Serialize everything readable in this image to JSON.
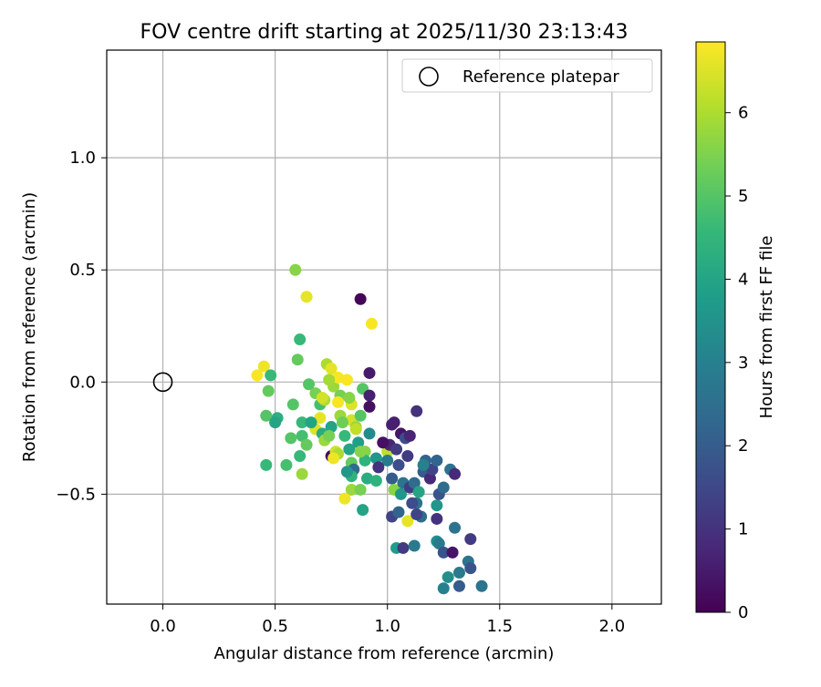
{
  "chart_data": {
    "type": "scatter",
    "title": "FOV centre drift starting at 2025/11/30 23:13:43",
    "xlabel": "Angular distance from reference (arcmin)",
    "ylabel": "Rotation from reference (arcmin)",
    "xlim": [
      -0.25,
      2.22
    ],
    "ylim": [
      -0.99,
      1.48
    ],
    "xticks": [
      0.0,
      0.5,
      1.0,
      1.5,
      2.0
    ],
    "xtick_labels": [
      "0.0",
      "0.5",
      "1.0",
      "1.5",
      "2.0"
    ],
    "yticks": [
      -0.5,
      0.0,
      0.5,
      1.0
    ],
    "ytick_labels": [
      "−0.5",
      "0.0",
      "0.5",
      "1.0"
    ],
    "grid": true,
    "legend": {
      "position": "top-right",
      "label": "Reference platepar"
    },
    "reference_point": {
      "x": 0.0,
      "y": 0.0
    },
    "colorbar": {
      "label": "Hours from first FF file",
      "range": [
        0,
        6.85
      ],
      "ticks": [
        0,
        1,
        2,
        3,
        4,
        5,
        6
      ],
      "tick_labels": [
        "0",
        "1",
        "2",
        "3",
        "4",
        "5",
        "6"
      ],
      "colormap": "viridis",
      "colors": [
        "#440154",
        "#482878",
        "#3e4989",
        "#31688e",
        "#26828e",
        "#1f9e89",
        "#35b779",
        "#6ece58",
        "#b5de2b",
        "#fde725"
      ]
    },
    "series": [
      {
        "name": "FOV centre drift",
        "points": [
          {
            "x": 0.88,
            "y": 0.37,
            "t": 0.1
          },
          {
            "x": 0.93,
            "y": 0.26,
            "t": 6.8
          },
          {
            "x": 0.59,
            "y": 0.5,
            "t": 5.6
          },
          {
            "x": 0.64,
            "y": 0.38,
            "t": 6.6
          },
          {
            "x": 0.42,
            "y": 0.03,
            "t": 6.8
          },
          {
            "x": 0.45,
            "y": 0.07,
            "t": 6.7
          },
          {
            "x": 0.48,
            "y": 0.03,
            "t": 4.6
          },
          {
            "x": 0.47,
            "y": -0.04,
            "t": 5.2
          },
          {
            "x": 0.61,
            "y": 0.19,
            "t": 4.6
          },
          {
            "x": 0.6,
            "y": 0.1,
            "t": 5.2
          },
          {
            "x": 0.46,
            "y": -0.15,
            "t": 5.0
          },
          {
            "x": 0.51,
            "y": -0.16,
            "t": 4.3
          },
          {
            "x": 0.5,
            "y": -0.18,
            "t": 4.0
          },
          {
            "x": 0.46,
            "y": -0.37,
            "t": 4.6
          },
          {
            "x": 0.55,
            "y": -0.37,
            "t": 4.8
          },
          {
            "x": 0.58,
            "y": -0.1,
            "t": 5.0
          },
          {
            "x": 0.62,
            "y": -0.41,
            "t": 5.8
          },
          {
            "x": 0.62,
            "y": -0.24,
            "t": 4.8
          },
          {
            "x": 0.61,
            "y": -0.33,
            "t": 4.6
          },
          {
            "x": 0.57,
            "y": -0.25,
            "t": 5.0
          },
          {
            "x": 0.62,
            "y": -0.18,
            "t": 4.6
          },
          {
            "x": 0.65,
            "y": -0.01,
            "t": 5.0
          },
          {
            "x": 0.68,
            "y": -0.05,
            "t": 5.4
          },
          {
            "x": 0.7,
            "y": -0.1,
            "t": 4.8
          },
          {
            "x": 0.72,
            "y": -0.08,
            "t": 6.0
          },
          {
            "x": 0.73,
            "y": 0.08,
            "t": 6.0
          },
          {
            "x": 0.75,
            "y": 0.06,
            "t": 6.6
          },
          {
            "x": 0.76,
            "y": -0.02,
            "t": 5.8
          },
          {
            "x": 0.78,
            "y": 0.02,
            "t": 6.8
          },
          {
            "x": 0.79,
            "y": -0.06,
            "t": 5.4
          },
          {
            "x": 0.82,
            "y": 0.01,
            "t": 6.8
          },
          {
            "x": 0.84,
            "y": -0.1,
            "t": 6.5
          },
          {
            "x": 0.83,
            "y": -0.07,
            "t": 5.6
          },
          {
            "x": 0.89,
            "y": -0.03,
            "t": 5.0
          },
          {
            "x": 0.92,
            "y": 0.04,
            "t": 0.5
          },
          {
            "x": 0.92,
            "y": -0.06,
            "t": 0.6
          },
          {
            "x": 0.92,
            "y": -0.11,
            "t": 0.3
          },
          {
            "x": 0.68,
            "y": -0.21,
            "t": 6.5
          },
          {
            "x": 0.7,
            "y": -0.16,
            "t": 6.6
          },
          {
            "x": 0.71,
            "y": -0.23,
            "t": 4.2
          },
          {
            "x": 0.72,
            "y": -0.26,
            "t": 5.8
          },
          {
            "x": 0.75,
            "y": -0.2,
            "t": 4.0
          },
          {
            "x": 0.75,
            "y": -0.33,
            "t": 0.2
          },
          {
            "x": 0.77,
            "y": -0.31,
            "t": 6.4
          },
          {
            "x": 0.78,
            "y": -0.09,
            "t": 6.8
          },
          {
            "x": 0.79,
            "y": -0.15,
            "t": 5.8
          },
          {
            "x": 0.81,
            "y": -0.24,
            "t": 4.6
          },
          {
            "x": 0.83,
            "y": -0.3,
            "t": 4.0
          },
          {
            "x": 0.84,
            "y": -0.17,
            "t": 6.4
          },
          {
            "x": 0.86,
            "y": -0.2,
            "t": 5.8
          },
          {
            "x": 0.87,
            "y": -0.27,
            "t": 3.8
          },
          {
            "x": 0.88,
            "y": -0.15,
            "t": 5.0
          },
          {
            "x": 0.9,
            "y": -0.31,
            "t": 5.6
          },
          {
            "x": 0.92,
            "y": -0.23,
            "t": 3.3
          },
          {
            "x": 0.84,
            "y": -0.36,
            "t": 5.2
          },
          {
            "x": 0.85,
            "y": -0.39,
            "t": 2.4
          },
          {
            "x": 0.84,
            "y": -0.42,
            "t": 4.4
          },
          {
            "x": 0.84,
            "y": -0.48,
            "t": 5.8
          },
          {
            "x": 0.88,
            "y": -0.48,
            "t": 5.4
          },
          {
            "x": 0.81,
            "y": -0.52,
            "t": 6.7
          },
          {
            "x": 0.89,
            "y": -0.57,
            "t": 4.0
          },
          {
            "x": 0.91,
            "y": -0.43,
            "t": 4.2
          },
          {
            "x": 0.95,
            "y": -0.44,
            "t": 4.4
          },
          {
            "x": 0.95,
            "y": -0.34,
            "t": 3.6
          },
          {
            "x": 1.0,
            "y": -0.31,
            "t": 6.2
          },
          {
            "x": 1.01,
            "y": -0.28,
            "t": 0.7
          },
          {
            "x": 1.02,
            "y": -0.19,
            "t": 0.6
          },
          {
            "x": 1.03,
            "y": -0.18,
            "t": 0.6
          },
          {
            "x": 1.04,
            "y": -0.3,
            "t": 1.2
          },
          {
            "x": 1.05,
            "y": -0.37,
            "t": 1.6
          },
          {
            "x": 1.06,
            "y": -0.23,
            "t": 0.4
          },
          {
            "x": 1.08,
            "y": -0.25,
            "t": 1.6
          },
          {
            "x": 1.09,
            "y": -0.33,
            "t": 1.2
          },
          {
            "x": 1.1,
            "y": -0.24,
            "t": 0.7
          },
          {
            "x": 1.13,
            "y": -0.13,
            "t": 1.0
          },
          {
            "x": 1.02,
            "y": -0.43,
            "t": 2.0
          },
          {
            "x": 1.03,
            "y": -0.48,
            "t": 5.6
          },
          {
            "x": 1.06,
            "y": -0.5,
            "t": 3.6
          },
          {
            "x": 1.02,
            "y": -0.6,
            "t": 1.4
          },
          {
            "x": 1.05,
            "y": -0.58,
            "t": 2.2
          },
          {
            "x": 1.07,
            "y": -0.45,
            "t": 2.6
          },
          {
            "x": 1.09,
            "y": -0.62,
            "t": 6.6
          },
          {
            "x": 1.1,
            "y": -0.47,
            "t": 1.2
          },
          {
            "x": 1.12,
            "y": -0.45,
            "t": 2.4
          },
          {
            "x": 1.13,
            "y": -0.54,
            "t": 2.6
          },
          {
            "x": 1.14,
            "y": -0.49,
            "t": 4.0
          },
          {
            "x": 1.15,
            "y": -0.6,
            "t": 2.4
          },
          {
            "x": 1.16,
            "y": -0.4,
            "t": 2.0
          },
          {
            "x": 1.17,
            "y": -0.35,
            "t": 2.2
          },
          {
            "x": 1.19,
            "y": -0.43,
            "t": 0.8
          },
          {
            "x": 1.2,
            "y": -0.39,
            "t": 1.4
          },
          {
            "x": 1.22,
            "y": -0.35,
            "t": 2.2
          },
          {
            "x": 1.22,
            "y": -0.55,
            "t": 3.6
          },
          {
            "x": 1.23,
            "y": -0.5,
            "t": 1.8
          },
          {
            "x": 1.25,
            "y": -0.47,
            "t": 2.4
          },
          {
            "x": 1.28,
            "y": -0.39,
            "t": 2.6
          },
          {
            "x": 1.3,
            "y": -0.41,
            "t": 0.8
          },
          {
            "x": 1.22,
            "y": -0.61,
            "t": 1.0
          },
          {
            "x": 1.22,
            "y": -0.71,
            "t": 3.4
          },
          {
            "x": 1.23,
            "y": -0.72,
            "t": 2.8
          },
          {
            "x": 1.25,
            "y": -0.76,
            "t": 1.8
          },
          {
            "x": 1.29,
            "y": -0.76,
            "t": 0.4
          },
          {
            "x": 1.3,
            "y": -0.65,
            "t": 2.6
          },
          {
            "x": 1.32,
            "y": -0.85,
            "t": 2.8
          },
          {
            "x": 1.36,
            "y": -0.8,
            "t": 2.6
          },
          {
            "x": 1.37,
            "y": -0.83,
            "t": 1.8
          },
          {
            "x": 1.37,
            "y": -0.7,
            "t": 1.2
          },
          {
            "x": 1.27,
            "y": -0.87,
            "t": 3.4
          },
          {
            "x": 1.25,
            "y": -0.92,
            "t": 3.0
          },
          {
            "x": 1.32,
            "y": -0.91,
            "t": 2.0
          },
          {
            "x": 1.42,
            "y": -0.91,
            "t": 2.6
          },
          {
            "x": 1.04,
            "y": -0.74,
            "t": 3.8
          },
          {
            "x": 1.07,
            "y": -0.74,
            "t": 1.2
          },
          {
            "x": 1.12,
            "y": -0.73,
            "t": 2.8
          },
          {
            "x": 1.13,
            "y": -0.59,
            "t": 1.4
          },
          {
            "x": 0.98,
            "y": -0.27,
            "t": 0.3
          },
          {
            "x": 0.9,
            "y": -0.35,
            "t": 4.4
          },
          {
            "x": 0.88,
            "y": -0.31,
            "t": 5.6
          },
          {
            "x": 0.78,
            "y": -0.32,
            "t": 6.0
          },
          {
            "x": 0.76,
            "y": -0.34,
            "t": 6.7
          },
          {
            "x": 0.74,
            "y": -0.24,
            "t": 5.4
          },
          {
            "x": 0.66,
            "y": -0.18,
            "t": 4.0
          },
          {
            "x": 0.64,
            "y": -0.28,
            "t": 5.2
          },
          {
            "x": 0.71,
            "y": -0.07,
            "t": 6.4
          },
          {
            "x": 0.74,
            "y": 0.01,
            "t": 5.9
          },
          {
            "x": 0.86,
            "y": -0.21,
            "t": 6.2
          },
          {
            "x": 0.8,
            "y": -0.18,
            "t": 5.3
          },
          {
            "x": 0.82,
            "y": -0.4,
            "t": 3.6
          },
          {
            "x": 1.0,
            "y": -0.35,
            "t": 2.8
          },
          {
            "x": 0.96,
            "y": -0.38,
            "t": 1.0
          },
          {
            "x": 1.11,
            "y": -0.54,
            "t": 1.6
          },
          {
            "x": 1.16,
            "y": -0.37,
            "t": 3.0
          }
        ]
      }
    ]
  }
}
